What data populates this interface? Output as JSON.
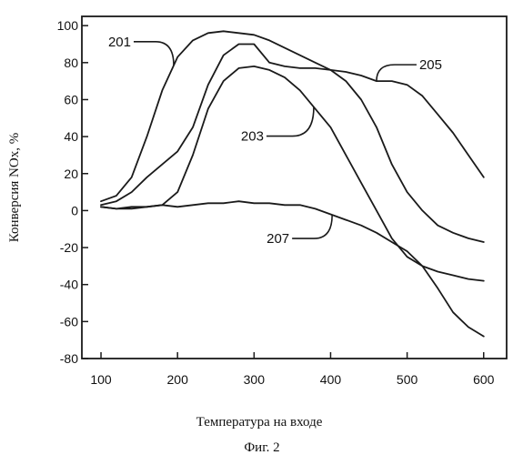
{
  "chart_data": {
    "type": "line",
    "xlabel": "Температура на входе",
    "ylabel": "Конверсия NOx, %",
    "caption": "Фиг. 2",
    "xlim": [
      75,
      630
    ],
    "ylim": [
      -80,
      105
    ],
    "xticks": [
      100,
      200,
      300,
      400,
      500,
      600
    ],
    "yticks": [
      100,
      80,
      60,
      40,
      20,
      0,
      -20,
      -40,
      -60,
      -80
    ],
    "grid": false,
    "legend": "none",
    "series": [
      {
        "name": "201",
        "x": [
          100,
          120,
          140,
          160,
          180,
          200,
          220,
          240,
          260,
          280,
          300,
          320,
          340,
          360,
          380,
          400,
          420,
          440,
          460,
          480,
          500,
          520,
          540,
          560,
          580,
          600
        ],
        "y": [
          5,
          8,
          18,
          40,
          65,
          83,
          92,
          96,
          97,
          96,
          95,
          92,
          88,
          84,
          80,
          76,
          70,
          60,
          45,
          25,
          10,
          0,
          -8,
          -12,
          -15,
          -17
        ]
      },
      {
        "name": "203",
        "x": [
          100,
          120,
          140,
          160,
          180,
          200,
          220,
          240,
          260,
          280,
          300,
          320,
          340,
          360,
          380,
          400,
          420,
          440,
          460,
          480,
          500,
          520,
          540,
          560,
          580,
          600
        ],
        "y": [
          2,
          1,
          1,
          2,
          3,
          10,
          30,
          55,
          70,
          77,
          78,
          76,
          72,
          65,
          55,
          45,
          30,
          15,
          0,
          -15,
          -25,
          -30,
          -33,
          -35,
          -37,
          -38
        ]
      },
      {
        "name": "205",
        "x": [
          100,
          120,
          140,
          160,
          180,
          200,
          220,
          240,
          260,
          280,
          300,
          320,
          340,
          360,
          380,
          400,
          420,
          440,
          460,
          480,
          500,
          520,
          540,
          560,
          580,
          600
        ],
        "y": [
          3,
          5,
          10,
          18,
          25,
          32,
          45,
          68,
          84,
          90,
          90,
          80,
          78,
          77,
          77,
          76,
          75,
          73,
          70,
          70,
          68,
          62,
          52,
          42,
          30,
          18
        ]
      },
      {
        "name": "207",
        "x": [
          100,
          120,
          140,
          160,
          180,
          200,
          220,
          240,
          260,
          280,
          300,
          320,
          340,
          360,
          380,
          400,
          420,
          440,
          460,
          480,
          500,
          520,
          540,
          560,
          580,
          600
        ],
        "y": [
          2,
          1,
          2,
          2,
          3,
          2,
          3,
          4,
          4,
          5,
          4,
          4,
          3,
          3,
          1,
          -2,
          -5,
          -8,
          -12,
          -17,
          -22,
          -30,
          -42,
          -55,
          -63,
          -68
        ]
      }
    ],
    "annotations": [
      {
        "text": "201",
        "series": "201"
      },
      {
        "text": "203",
        "series": "203"
      },
      {
        "text": "205",
        "series": "205"
      },
      {
        "text": "207",
        "series": "207"
      }
    ]
  }
}
